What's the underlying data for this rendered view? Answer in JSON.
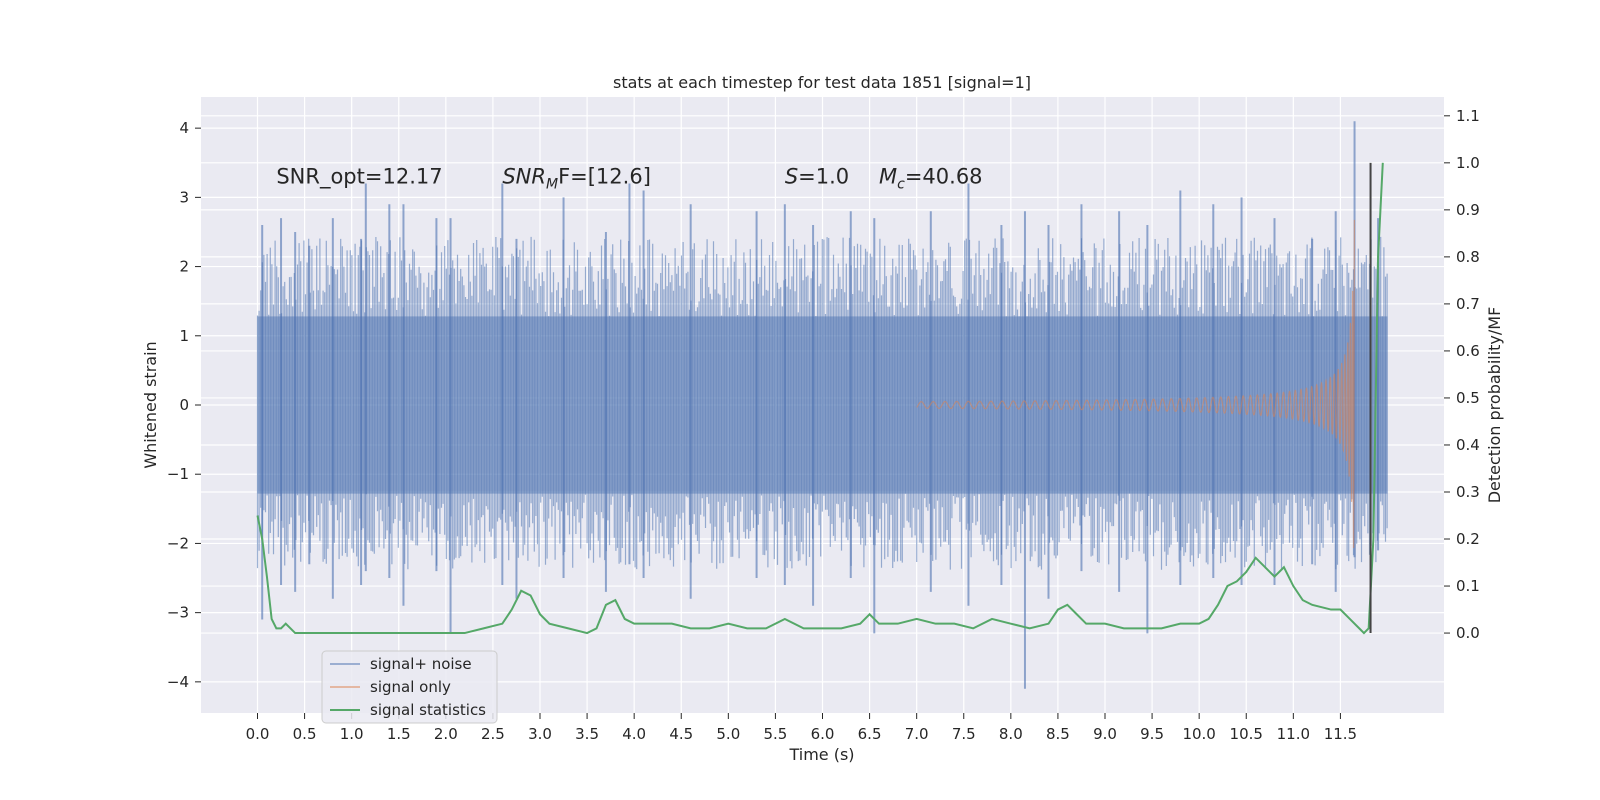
{
  "chart_data": {
    "type": "line",
    "title": "stats at each timestep for test data 1851 [signal=1]",
    "xlabel": "Time (s)",
    "ylabel": "Whitened strain",
    "y2label": "Detection probability/MF",
    "xlim": [
      -0.6,
      12.6
    ],
    "ylim": [
      -4.45,
      4.45
    ],
    "y2lim": [
      -0.17,
      1.14
    ],
    "x_ticks": [
      "0.0",
      "0.5",
      "1.0",
      "1.5",
      "2.0",
      "2.5",
      "3.0",
      "3.5",
      "4.0",
      "4.5",
      "5.0",
      "5.5",
      "6.0",
      "6.5",
      "7.0",
      "7.5",
      "8.0",
      "8.5",
      "9.0",
      "9.5",
      "10.0",
      "10.5",
      "11.0",
      "11.5"
    ],
    "y_ticks": [
      "4",
      "3",
      "2",
      "1",
      "0",
      "−1",
      "−2",
      "−3",
      "−4"
    ],
    "y2_ticks": [
      "1.1",
      "1.0",
      "0.9",
      "0.8",
      "0.7",
      "0.6",
      "0.5",
      "0.4",
      "0.3",
      "0.2",
      "0.1",
      "0.0"
    ],
    "grid": true,
    "legend_position": "lower-left",
    "annotations": {
      "snr_opt": "SNR_opt=12.17",
      "snr_mf_main": "SNR",
      "snr_mf_sub": "M",
      "snr_mf_rest": "F=[12.6]",
      "s_italic": "S",
      "s_rest": "=1.0",
      "mc_italic": "M",
      "mc_sub": "c",
      "mc_rest": "=40.68"
    },
    "series": [
      {
        "name": "signal+ noise",
        "color": "#4c72b0",
        "kind": "noise_band",
        "t_start": 0.0,
        "t_end": 12.0,
        "core_amplitude": 1.28,
        "spikes": [
          [
            0.05,
            2.6,
            -3.1
          ],
          [
            0.25,
            2.7,
            -2.6
          ],
          [
            0.4,
            2.5,
            -2.7
          ],
          [
            0.55,
            2.3,
            -2.3
          ],
          [
            0.8,
            2.7,
            -2.8
          ],
          [
            1.1,
            2.4,
            -2.6
          ],
          [
            1.15,
            3.2,
            -2.4
          ],
          [
            1.4,
            2.9,
            -2.5
          ],
          [
            1.55,
            2.9,
            -2.9
          ],
          [
            1.9,
            2.7,
            -2.4
          ],
          [
            2.05,
            2.7,
            -3.3
          ],
          [
            2.6,
            3.2,
            -2.6
          ],
          [
            2.75,
            2.4,
            -2.8
          ],
          [
            3.25,
            3.0,
            -2.5
          ],
          [
            3.7,
            2.5,
            -2.7
          ],
          [
            3.95,
            3.2,
            -2.3
          ],
          [
            4.1,
            3.1,
            -2.5
          ],
          [
            4.6,
            2.9,
            -2.8
          ],
          [
            5.3,
            2.8,
            -2.5
          ],
          [
            5.6,
            2.9,
            -2.6
          ],
          [
            5.9,
            2.6,
            -2.9
          ],
          [
            6.3,
            2.8,
            -2.5
          ],
          [
            6.55,
            2.7,
            -3.3
          ],
          [
            7.15,
            2.8,
            -2.7
          ],
          [
            7.55,
            3.2,
            -2.9
          ],
          [
            7.9,
            2.6,
            -2.6
          ],
          [
            8.15,
            2.8,
            -4.1
          ],
          [
            8.4,
            2.6,
            -2.8
          ],
          [
            8.75,
            2.9,
            -2.4
          ],
          [
            9.15,
            2.8,
            -2.7
          ],
          [
            9.45,
            2.6,
            -3.3
          ],
          [
            9.8,
            3.1,
            -2.6
          ],
          [
            10.15,
            2.9,
            -2.5
          ],
          [
            10.45,
            3.0,
            -2.6
          ],
          [
            10.8,
            2.7,
            -2.6
          ],
          [
            11.2,
            2.4,
            -2.3
          ],
          [
            11.45,
            2.8,
            -2.7
          ],
          [
            11.65,
            4.1,
            -2.2
          ],
          [
            11.9,
            2.7,
            -2.1
          ]
        ]
      },
      {
        "name": "signal only",
        "color": "#dd8452",
        "kind": "chirp",
        "t_start": 7.0,
        "t_merge": 11.65,
        "peak_amplitude": 2.85
      },
      {
        "name": "signal statistics",
        "color": "#55a868",
        "axis": "right",
        "x": [
          0.0,
          0.05,
          0.1,
          0.15,
          0.2,
          0.25,
          0.3,
          0.4,
          0.5,
          0.6,
          0.8,
          1.0,
          1.2,
          1.4,
          1.6,
          1.8,
          2.0,
          2.2,
          2.4,
          2.6,
          2.7,
          2.8,
          2.9,
          3.0,
          3.1,
          3.3,
          3.5,
          3.6,
          3.7,
          3.8,
          3.9,
          4.0,
          4.2,
          4.4,
          4.6,
          4.8,
          5.0,
          5.2,
          5.4,
          5.6,
          5.8,
          6.0,
          6.2,
          6.4,
          6.5,
          6.6,
          6.8,
          7.0,
          7.2,
          7.4,
          7.6,
          7.8,
          8.0,
          8.2,
          8.4,
          8.5,
          8.6,
          8.7,
          8.8,
          9.0,
          9.2,
          9.4,
          9.6,
          9.8,
          10.0,
          10.1,
          10.2,
          10.3,
          10.4,
          10.5,
          10.6,
          10.7,
          10.8,
          10.9,
          11.0,
          11.1,
          11.2,
          11.4,
          11.5,
          11.6,
          11.7,
          11.75,
          11.8,
          11.85,
          11.9,
          11.95
        ],
        "y": [
          0.25,
          0.2,
          0.12,
          0.03,
          0.01,
          0.01,
          0.02,
          0.0,
          0.0,
          0.0,
          0.0,
          0.0,
          0.0,
          0.0,
          0.0,
          0.0,
          0.0,
          0.0,
          0.01,
          0.02,
          0.05,
          0.09,
          0.08,
          0.04,
          0.02,
          0.01,
          0.0,
          0.01,
          0.06,
          0.07,
          0.03,
          0.02,
          0.02,
          0.02,
          0.01,
          0.01,
          0.02,
          0.01,
          0.01,
          0.03,
          0.01,
          0.01,
          0.01,
          0.02,
          0.04,
          0.02,
          0.02,
          0.03,
          0.02,
          0.02,
          0.01,
          0.03,
          0.02,
          0.01,
          0.02,
          0.05,
          0.06,
          0.04,
          0.02,
          0.02,
          0.01,
          0.01,
          0.01,
          0.02,
          0.02,
          0.03,
          0.06,
          0.1,
          0.11,
          0.13,
          0.16,
          0.14,
          0.12,
          0.14,
          0.1,
          0.07,
          0.06,
          0.05,
          0.05,
          0.03,
          0.01,
          0.0,
          0.01,
          0.2,
          0.8,
          1.0
        ]
      }
    ],
    "vertical_line_x": 11.82
  }
}
